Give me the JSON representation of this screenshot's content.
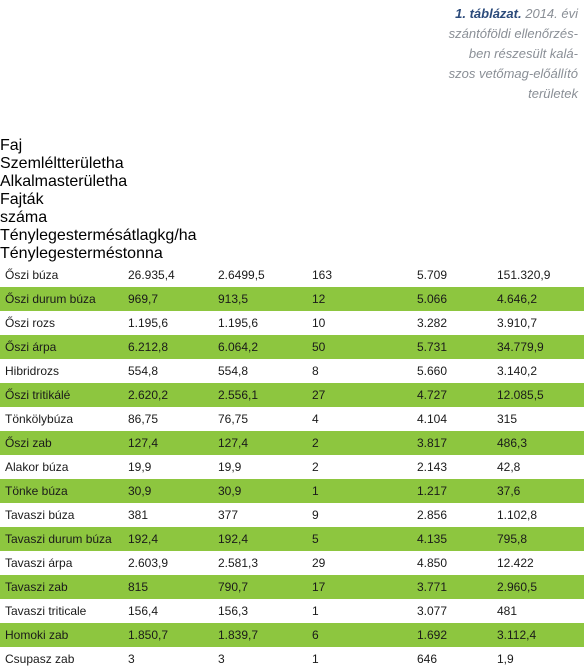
{
  "caption": {
    "label": "1. táblázat.",
    "lines": [
      "2014. évi",
      "szántóföldi ellenőrzés-",
      "ben részesült kalá-",
      "szos vetőmag-előállító",
      "területek"
    ]
  },
  "table": {
    "header": [
      [
        "Faj"
      ],
      [
        "Szemlélt",
        "terület",
        "ha"
      ],
      [
        "Alkalmas",
        "terület",
        "ha"
      ],
      [
        "Fajták száma"
      ],
      [
        "Tényleges",
        "termésátlag",
        "kg/ha"
      ],
      [
        "Tényleges",
        "termés",
        "tonna"
      ]
    ],
    "rows": [
      [
        "Őszi búza",
        "26.935,4",
        "2.6499,5",
        "163",
        "5.709",
        "151.320,9"
      ],
      [
        "Őszi durum búza",
        "969,7",
        "913,5",
        "12",
        "5.066",
        "4.646,2"
      ],
      [
        "Őszi rozs",
        "1.195,6",
        "1.195,6",
        "10",
        "3.282",
        "3.910,7"
      ],
      [
        "Őszi árpa",
        "6.212,8",
        "6.064,2",
        "50",
        "5.731",
        "34.779,9"
      ],
      [
        "Hibridrozs",
        "554,8",
        "554,8",
        "8",
        "5.660",
        "3.140,2"
      ],
      [
        "Őszi tritikálé",
        "2.620,2",
        "2.556,1",
        "27",
        "4.727",
        "12.085,5"
      ],
      [
        "Tönkölybúza",
        "86,75",
        "76,75",
        "4",
        "4.104",
        "315"
      ],
      [
        "Őszi zab",
        "127,4",
        "127,4",
        "2",
        "3.817",
        "486,3"
      ],
      [
        "Alakor búza",
        "19,9",
        "19,9",
        "2",
        "2.143",
        "42,8"
      ],
      [
        "Tönke búza",
        "30,9",
        "30,9",
        "1",
        "1.217",
        "37,6"
      ],
      [
        "Tavaszi búza",
        "381",
        "377",
        "9",
        "2.856",
        "1.102,8"
      ],
      [
        "Tavaszi durum búza",
        "192,4",
        "192,4",
        "5",
        "4.135",
        "795,8"
      ],
      [
        "Tavaszi árpa",
        "2.603,9",
        "2.581,3",
        "29",
        "4.850",
        "12.422"
      ],
      [
        "Tavaszi zab",
        "815",
        "790,7",
        "17",
        "3.771",
        "2.960,5"
      ],
      [
        "Tavaszi triticale",
        "156,4",
        "156,3",
        "1",
        "3.077",
        "481"
      ],
      [
        "Homoki zab",
        "1.850,7",
        "1.839,7",
        "6",
        "1.692",
        "3.112,4"
      ],
      [
        "Csupasz zab",
        "3",
        "3",
        "1",
        "646",
        "1,9"
      ]
    ]
  }
}
